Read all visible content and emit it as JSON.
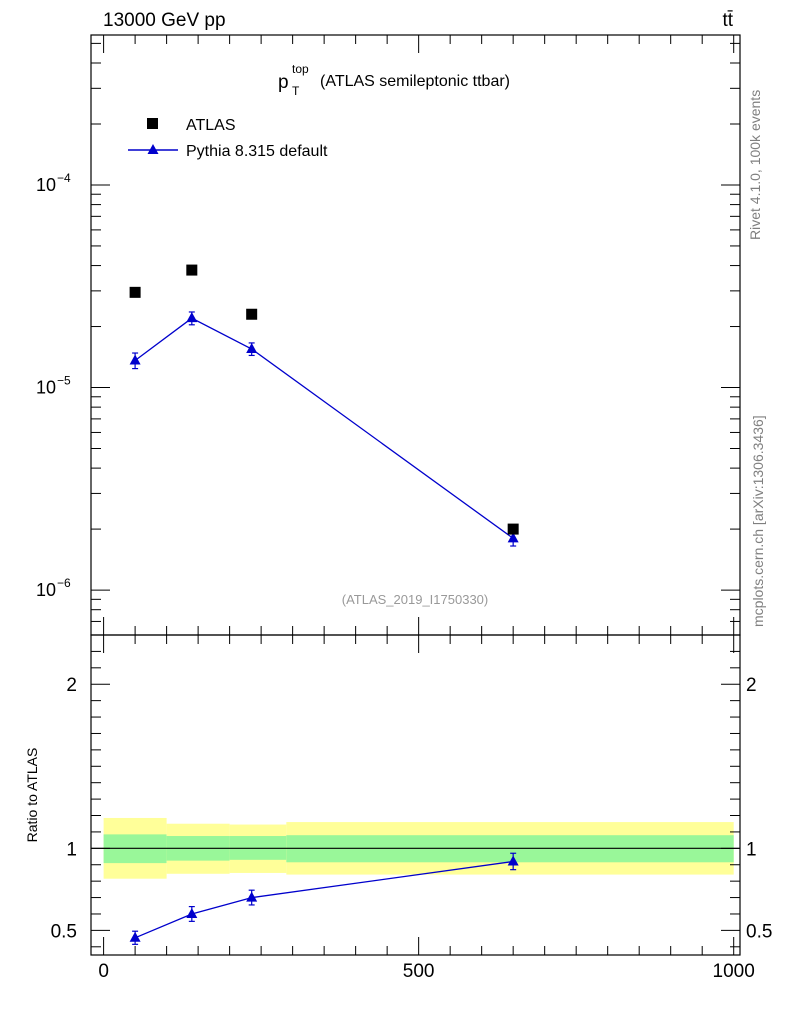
{
  "header": {
    "energy_label": "13000 GeV pp",
    "process_label": "tt̄"
  },
  "side_labels": {
    "rivet": "Rivet 4.1.0,  100k events",
    "source": "mcplots.cern.ch [arXiv:1306.3436]"
  },
  "colors": {
    "data": "#000000",
    "mc": "#0000cc",
    "band_inner": "#99f799",
    "band_outer": "#ffff99",
    "watermark": "#999999",
    "side_text": "#7f7f7f"
  },
  "chart_data": [
    {
      "type": "scatter",
      "panel": "main",
      "title": "p_T^top (ATLAS semileptonic ttbar)",
      "title_main": "p",
      "title_sub": "T",
      "title_sup": "top",
      "title_rest": "(ATLAS semileptonic ttbar)",
      "watermark": "(ATLAS_2019_I1750330)",
      "yscale": "log",
      "ylim": [
        6e-07,
        0.00055
      ],
      "xlim": [
        -20,
        1010
      ],
      "y_ticks": [
        {
          "value": 1e-06,
          "base": "10",
          "exp": "−6"
        },
        {
          "value": 1e-05,
          "base": "10",
          "exp": "−5"
        },
        {
          "value": 0.0001,
          "base": "10",
          "exp": "−4"
        }
      ],
      "legend": [
        "ATLAS",
        "Pythia 8.315 default"
      ],
      "legend_position": "top-left",
      "series": [
        {
          "name": "ATLAS",
          "marker": "square",
          "x": [
            50,
            140,
            235,
            650
          ],
          "y": [
            2.95e-05,
            3.8e-05,
            2.3e-05,
            2e-06
          ]
        },
        {
          "name": "Pythia 8.315 default",
          "marker": "triangle",
          "x": [
            50,
            140,
            235,
            650
          ],
          "y": [
            1.36e-05,
            2.2e-05,
            1.55e-05,
            1.8e-06
          ],
          "yerr_low": [
            1.2e-06,
            1.6e-06,
            1.1e-06,
            1.5e-07
          ],
          "yerr_high": [
            1.2e-06,
            1.6e-06,
            1.1e-06,
            1.5e-07
          ]
        }
      ]
    },
    {
      "type": "line",
      "panel": "ratio",
      "ylabel": "Ratio to ATLAS",
      "xlim": [
        -20,
        1010
      ],
      "ylim": [
        0.35,
        2.3
      ],
      "y_ticks": [
        0.5,
        1,
        2
      ],
      "y_tick_labels": [
        "0.5",
        "1",
        "2"
      ],
      "x_ticks": [
        0,
        500,
        1000
      ],
      "x_tick_labels": [
        "0",
        "500",
        "1000"
      ],
      "reference_line": 1,
      "bands": {
        "edges": [
          0,
          100,
          200,
          290,
          1000
        ],
        "inner_low": [
          0.91,
          0.925,
          0.93,
          0.915
        ],
        "inner_high": [
          1.085,
          1.075,
          1.075,
          1.08
        ],
        "outer_low": [
          0.815,
          0.845,
          0.85,
          0.84
        ],
        "outer_high": [
          1.185,
          1.15,
          1.145,
          1.16
        ]
      },
      "series": [
        {
          "name": "Pythia 8.315 default",
          "x": [
            50,
            140,
            235,
            650
          ],
          "y": [
            0.455,
            0.6,
            0.7,
            0.92
          ],
          "yerr_low": [
            0.04,
            0.045,
            0.045,
            0.05
          ],
          "yerr_high": [
            0.04,
            0.045,
            0.045,
            0.05
          ]
        }
      ]
    }
  ]
}
